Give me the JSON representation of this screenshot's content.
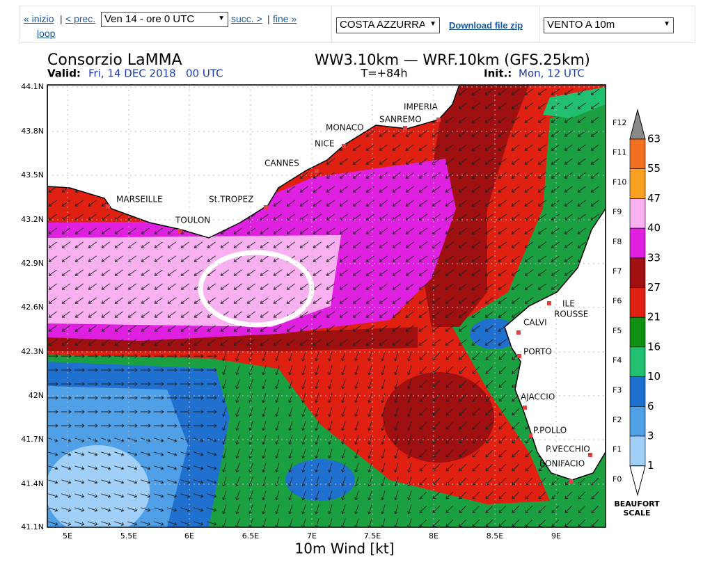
{
  "nav": {
    "first": "« inizio",
    "prev": "< prec.",
    "separator": "|",
    "time_select": "Ven 14 - ore 0 UTC",
    "next": "succ. >",
    "last": "fine »",
    "loop": "loop",
    "region_select": "COSTA AZZURRA",
    "download": "Download file zip",
    "field_select": "VENTO A 10m"
  },
  "map": {
    "title": "Consorzio LaMMA",
    "model": "WW3.10km — WRF.10km (GFS.25km)",
    "valid_label": "Valid:",
    "valid": "Fri, 14 DEC 2018   00 UTC",
    "step": "T=+84h",
    "init_label": "Init.:",
    "init": "Mon, 12 UTC",
    "lat_labels": [
      "44.1N",
      "43.8N",
      "43.5N",
      "43.2N",
      "42.9N",
      "42.6N",
      "42.3N",
      "42N",
      "41.7N",
      "41.4N",
      "41.1N"
    ],
    "lon_labels": [
      "5E",
      "5.5E",
      "6E",
      "6.5E",
      "7E",
      "7.5E",
      "8E",
      "8.5E",
      "9E"
    ],
    "x_title": "10m Wind [kt]",
    "places": [
      "MARSEILLE",
      "TOULON",
      "St.TROPEZ",
      "CANNES",
      "NICE",
      "MONACO",
      "SANREMO",
      "IMPERIA",
      "ILE",
      "ROUSSE",
      "CALVI",
      "PORTO",
      "AJACCIO",
      "P.POLLO",
      "P.VECCHIO",
      "BONIFACIO"
    ],
    "legend": {
      "beaufort": [
        "F12",
        "F11",
        "F10",
        "F9",
        "F8",
        "F7",
        "F6",
        "F5",
        "F4",
        "F3",
        "F2",
        "F1",
        "F0"
      ],
      "knots": [
        "63",
        "55",
        "47",
        "40",
        "33",
        "27",
        "21",
        "16",
        "10",
        "6",
        "3",
        "1"
      ],
      "title_1": "BEAUFORT",
      "title_2": "SCALE"
    }
  }
}
